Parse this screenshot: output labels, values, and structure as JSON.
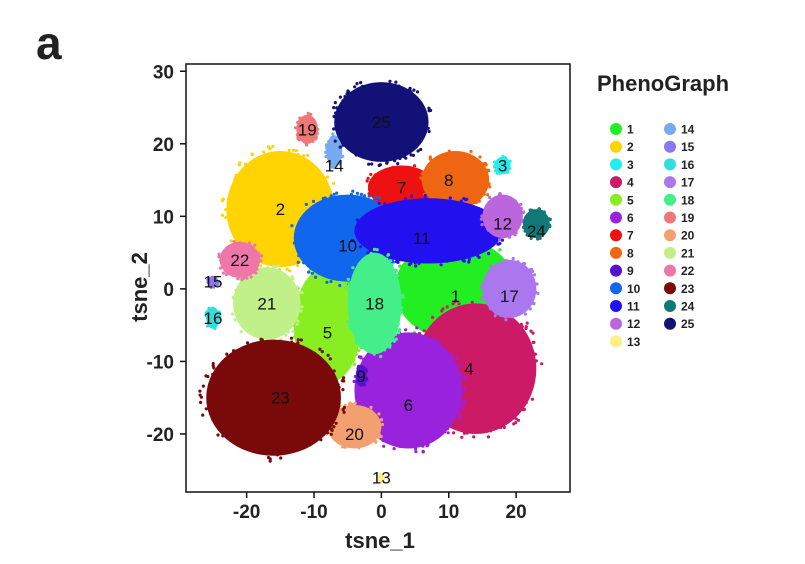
{
  "panel_label": "a",
  "chart_data": {
    "type": "scatter",
    "title": "",
    "xlabel": "tsne_1",
    "ylabel": "tsne_2",
    "xlim": [
      -29,
      28
    ],
    "ylim": [
      -28,
      31
    ],
    "xticks": [
      -20,
      -10,
      0,
      10,
      20
    ],
    "yticks": [
      -20,
      -10,
      0,
      10,
      20,
      30
    ],
    "grid": false,
    "legend": {
      "title": "PhenoGraph",
      "placement": "right",
      "entries": [
        {
          "label": "1",
          "color": "#22ee22"
        },
        {
          "label": "2",
          "color": "#ffd400"
        },
        {
          "label": "3",
          "color": "#22eeee"
        },
        {
          "label": "4",
          "color": "#cc1a66"
        },
        {
          "label": "5",
          "color": "#88ee22"
        },
        {
          "label": "6",
          "color": "#9922dd"
        },
        {
          "label": "7",
          "color": "#ee1111"
        },
        {
          "label": "8",
          "color": "#ee6611"
        },
        {
          "label": "9",
          "color": "#5511cc"
        },
        {
          "label": "10",
          "color": "#1166ee"
        },
        {
          "label": "11",
          "color": "#2211ee"
        },
        {
          "label": "12",
          "color": "#bb66dd"
        },
        {
          "label": "13",
          "color": "#ffee88"
        },
        {
          "label": "14",
          "color": "#77aaee"
        },
        {
          "label": "15",
          "color": "#8877ee"
        },
        {
          "label": "16",
          "color": "#33dddd"
        },
        {
          "label": "17",
          "color": "#aa77ee"
        },
        {
          "label": "18",
          "color": "#44ee88"
        },
        {
          "label": "19",
          "color": "#ee7777"
        },
        {
          "label": "20",
          "color": "#f2a070"
        },
        {
          "label": "21",
          "color": "#c2f088"
        },
        {
          "label": "22",
          "color": "#ee77aa"
        },
        {
          "label": "23",
          "color": "#7a0a0a"
        },
        {
          "label": "24",
          "color": "#117777"
        },
        {
          "label": "25",
          "color": "#111177"
        }
      ]
    },
    "clusters": [
      {
        "id": "1",
        "color": "#22ee22",
        "center": [
          11,
          0
        ],
        "radius": [
          9,
          7
        ]
      },
      {
        "id": "2",
        "color": "#ffd400",
        "center": [
          -15,
          11
        ],
        "radius": [
          8,
          8
        ]
      },
      {
        "id": "3",
        "color": "#22eeee",
        "center": [
          18,
          17
        ],
        "radius": [
          1.2,
          1.2
        ]
      },
      {
        "id": "4",
        "color": "#cc1a66",
        "center": [
          14,
          -11
        ],
        "radius": [
          9,
          9
        ]
      },
      {
        "id": "5",
        "color": "#88ee22",
        "center": [
          -8,
          -5
        ],
        "radius": [
          5,
          8
        ]
      },
      {
        "id": "6",
        "color": "#9922dd",
        "center": [
          4,
          -14
        ],
        "radius": [
          8,
          8
        ]
      },
      {
        "id": "7",
        "color": "#ee1111",
        "center": [
          3,
          14
        ],
        "radius": [
          5,
          3
        ]
      },
      {
        "id": "8",
        "color": "#ee6611",
        "center": [
          11,
          15
        ],
        "radius": [
          5,
          4
        ]
      },
      {
        "id": "9",
        "color": "#5511cc",
        "center": [
          -3,
          -12
        ],
        "radius": [
          0.8,
          1.5
        ]
      },
      {
        "id": "10",
        "color": "#1166ee",
        "center": [
          -5,
          7
        ],
        "radius": [
          8,
          6
        ]
      },
      {
        "id": "11",
        "color": "#2211ee",
        "center": [
          7,
          8
        ],
        "radius": [
          11,
          4.5
        ]
      },
      {
        "id": "12",
        "color": "#bb66dd",
        "center": [
          18,
          10
        ],
        "radius": [
          3,
          3
        ]
      },
      {
        "id": "13",
        "color": "#ffee88",
        "center": [
          0,
          -26
        ],
        "radius": [
          0.5,
          0.5
        ]
      },
      {
        "id": "14",
        "color": "#77aaee",
        "center": [
          -7,
          19
        ],
        "radius": [
          1.2,
          2.2
        ]
      },
      {
        "id": "15",
        "color": "#8877ee",
        "center": [
          -25,
          1
        ],
        "radius": [
          0.8,
          0.8
        ]
      },
      {
        "id": "16",
        "color": "#33dddd",
        "center": [
          -25,
          -4
        ],
        "radius": [
          1,
          1.5
        ]
      },
      {
        "id": "17",
        "color": "#aa77ee",
        "center": [
          19,
          0
        ],
        "radius": [
          4,
          4
        ]
      },
      {
        "id": "18",
        "color": "#44ee88",
        "center": [
          -1,
          -2
        ],
        "radius": [
          4,
          7
        ]
      },
      {
        "id": "19",
        "color": "#ee7777",
        "center": [
          -11,
          22
        ],
        "radius": [
          1.6,
          2
        ]
      },
      {
        "id": "20",
        "color": "#f2a070",
        "center": [
          -4,
          -19
        ],
        "radius": [
          4,
          3
        ]
      },
      {
        "id": "21",
        "color": "#c2f088",
        "center": [
          -17,
          -2
        ],
        "radius": [
          5,
          5
        ]
      },
      {
        "id": "22",
        "color": "#ee77aa",
        "center": [
          -21,
          4
        ],
        "radius": [
          3,
          2.5
        ]
      },
      {
        "id": "23",
        "color": "#7a0a0a",
        "center": [
          -16,
          -15
        ],
        "radius": [
          10,
          8
        ]
      },
      {
        "id": "24",
        "color": "#117777",
        "center": [
          23,
          9
        ],
        "radius": [
          2,
          2
        ]
      },
      {
        "id": "25",
        "color": "#111177",
        "center": [
          0,
          23
        ],
        "radius": [
          7,
          5.5
        ]
      }
    ],
    "annotations": [
      {
        "text": "1",
        "x": 11,
        "y": -1
      },
      {
        "text": "2",
        "x": -15,
        "y": 11
      },
      {
        "text": "3",
        "x": 18,
        "y": 17
      },
      {
        "text": "4",
        "x": 13,
        "y": -11
      },
      {
        "text": "5",
        "x": -8,
        "y": -6
      },
      {
        "text": "6",
        "x": 4,
        "y": -16
      },
      {
        "text": "7",
        "x": 3,
        "y": 14
      },
      {
        "text": "8",
        "x": 10,
        "y": 15
      },
      {
        "text": "9",
        "x": -3,
        "y": -12
      },
      {
        "text": "10",
        "x": -5,
        "y": 6
      },
      {
        "text": "11",
        "x": 6,
        "y": 7
      },
      {
        "text": "12",
        "x": 18,
        "y": 9
      },
      {
        "text": "13",
        "x": 0,
        "y": -26
      },
      {
        "text": "14",
        "x": -7,
        "y": 17
      },
      {
        "text": "15",
        "x": -25,
        "y": 1
      },
      {
        "text": "16",
        "x": -25,
        "y": -4
      },
      {
        "text": "17",
        "x": 19,
        "y": -1
      },
      {
        "text": "18",
        "x": -1,
        "y": -2
      },
      {
        "text": "19",
        "x": -11,
        "y": 22
      },
      {
        "text": "20",
        "x": -4,
        "y": -20
      },
      {
        "text": "21",
        "x": -17,
        "y": -2
      },
      {
        "text": "22",
        "x": -21,
        "y": 4
      },
      {
        "text": "23",
        "x": -15,
        "y": -15
      },
      {
        "text": "24",
        "x": 23,
        "y": 8
      },
      {
        "text": "25",
        "x": 0,
        "y": 23
      }
    ]
  }
}
